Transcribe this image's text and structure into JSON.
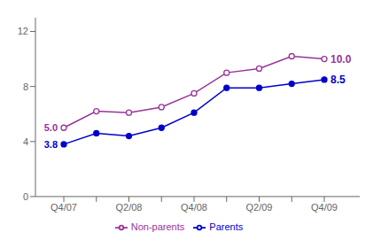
{
  "chart_data": {
    "type": "line",
    "categories": [
      "Q4/07",
      null,
      "Q2/08",
      null,
      "Q4/08",
      null,
      "Q2/09",
      null,
      "Q4/09"
    ],
    "series": [
      {
        "name": "Non-parents",
        "color": "#993399",
        "marker": "open_circle",
        "values": [
          5.0,
          6.2,
          6.1,
          6.5,
          7.5,
          9.0,
          9.3,
          10.2,
          10.0
        ]
      },
      {
        "name": "Parents",
        "color": "#0000cc",
        "marker": "circle",
        "values": [
          3.8,
          4.6,
          4.4,
          5.0,
          6.1,
          7.9,
          7.9,
          8.2,
          8.5
        ]
      }
    ],
    "annotations": [
      {
        "text": "5.0",
        "series": "Non-parents",
        "category": "Q4/07"
      },
      {
        "text": "3.8",
        "series": "Parents",
        "category": "Q4/07"
      },
      {
        "text": "10.0",
        "series": "Non-parents",
        "category": "Q4/09"
      },
      {
        "text": "8.5",
        "series": "Parents",
        "category": "Q4/09"
      }
    ],
    "ylim": [
      0,
      13
    ],
    "yticks": [
      0,
      4,
      8,
      12
    ],
    "grid": false,
    "legend": "bottom"
  }
}
